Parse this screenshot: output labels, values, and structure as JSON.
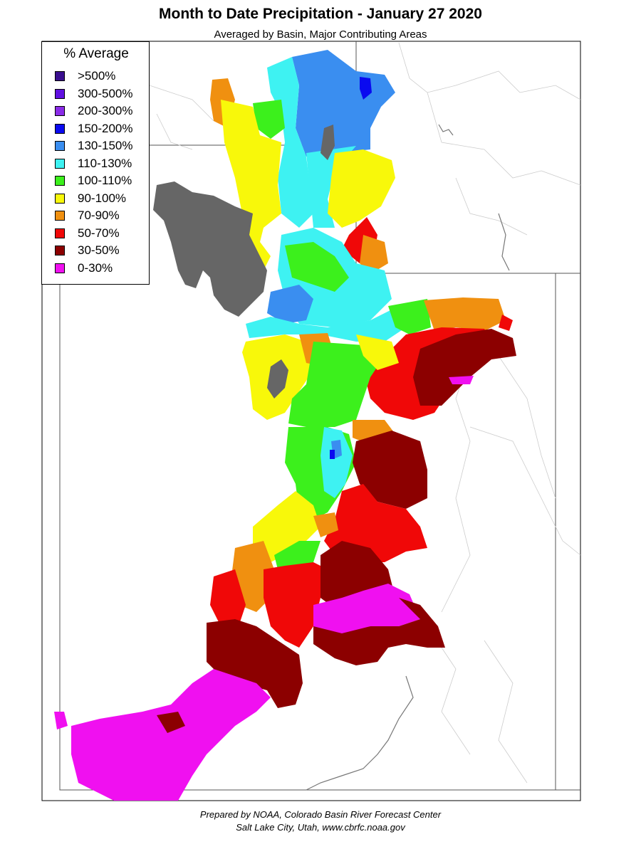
{
  "header": {
    "title": "Month to Date Precipitation - January 27 2020",
    "subtitle": "Averaged by Basin, Major Contributing Areas"
  },
  "legend": {
    "title": "% Average",
    "items": [
      {
        "label": ">500%",
        "color": "#3a0f8f"
      },
      {
        "label": "300-500%",
        "color": "#6010e0"
      },
      {
        "label": "200-300%",
        "color": "#8a2be8"
      },
      {
        "label": "150-200%",
        "color": "#0a0af0"
      },
      {
        "label": "130-150%",
        "color": "#3a8ef0"
      },
      {
        "label": "110-130%",
        "color": "#3ef2f2"
      },
      {
        "label": "100-110%",
        "color": "#3cf01c"
      },
      {
        "label": "90-100%",
        "color": "#f8f80a"
      },
      {
        "label": "70-90%",
        "color": "#f09010"
      },
      {
        "label": "50-70%",
        "color": "#f00808"
      },
      {
        "label": "30-50%",
        "color": "#8c0000"
      },
      {
        "label": "0-30%",
        "color": "#f010f0"
      }
    ]
  },
  "map": {
    "lake_color": "#666666"
  },
  "footer": {
    "line1": "Prepared by NOAA, Colorado Basin River Forecast Center",
    "line2": "Salt Lake City, Utah, www.cbrfc.noaa.gov"
  }
}
